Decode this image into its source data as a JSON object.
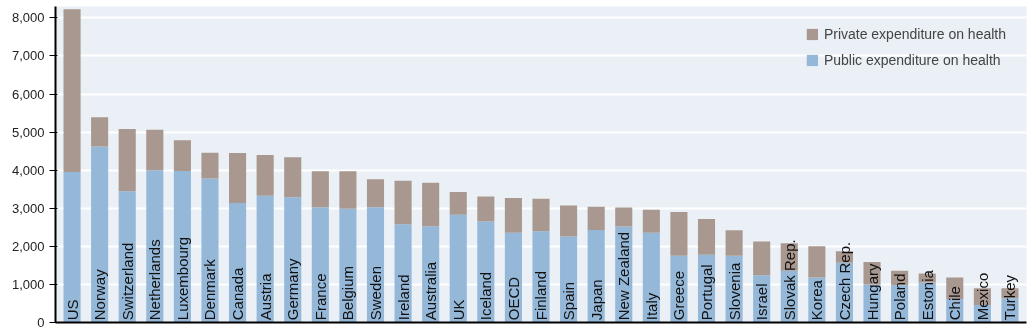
{
  "chart_data": {
    "type": "bar",
    "stacked": true,
    "categories": [
      "US",
      "Norway",
      "Switzerland",
      "Netherlands",
      "Luxembourg",
      "Denmark",
      "Canada",
      "Austria",
      "Germany",
      "France",
      "Belgium",
      "Sweden",
      "Ireland",
      "Australia",
      "UK",
      "Iceland",
      "OECD",
      "Finland",
      "Spain",
      "Japan",
      "New Zealand",
      "Italy",
      "Greece",
      "Portugal",
      "Slovenia",
      "Israel",
      "Slovak Rep.",
      "Korea",
      "Czech Rep.",
      "Hungary",
      "Poland",
      "Estonia",
      "Chile",
      "Mexico",
      "Turkey"
    ],
    "series": [
      {
        "name": "Public expenditure on health",
        "color": "#95b8d9",
        "values": [
          3950,
          4620,
          3450,
          4000,
          3980,
          3780,
          3140,
          3330,
          3290,
          3030,
          2990,
          3030,
          2580,
          2530,
          2830,
          2650,
          2360,
          2400,
          2260,
          2430,
          2520,
          2360,
          1750,
          1780,
          1750,
          1240,
          1360,
          1180,
          1570,
          1000,
          980,
          1050,
          620,
          460,
          640
        ]
      },
      {
        "name": "Private expenditure on health",
        "color": "#a89890",
        "values": [
          4280,
          770,
          1630,
          1060,
          810,
          680,
          1310,
          1070,
          1050,
          940,
          980,
          730,
          1140,
          1140,
          600,
          660,
          910,
          850,
          810,
          610,
          500,
          600,
          1150,
          940,
          670,
          890,
          720,
          820,
          300,
          590,
          380,
          240,
          560,
          440,
          260
        ]
      }
    ],
    "ylim": [
      0,
      8300
    ],
    "yticks": [
      {
        "value": 0,
        "label": "0"
      },
      {
        "value": 1000,
        "label": "1,000"
      },
      {
        "value": 2000,
        "label": "2,000"
      },
      {
        "value": 3000,
        "label": "3,000"
      },
      {
        "value": 4000,
        "label": "4,000"
      },
      {
        "value": 5000,
        "label": "5,000"
      },
      {
        "value": 6000,
        "label": "6,000"
      },
      {
        "value": 7000,
        "label": "7,000"
      },
      {
        "value": 8000,
        "label": "8,000"
      }
    ],
    "grid": "y",
    "legend": "top right"
  }
}
